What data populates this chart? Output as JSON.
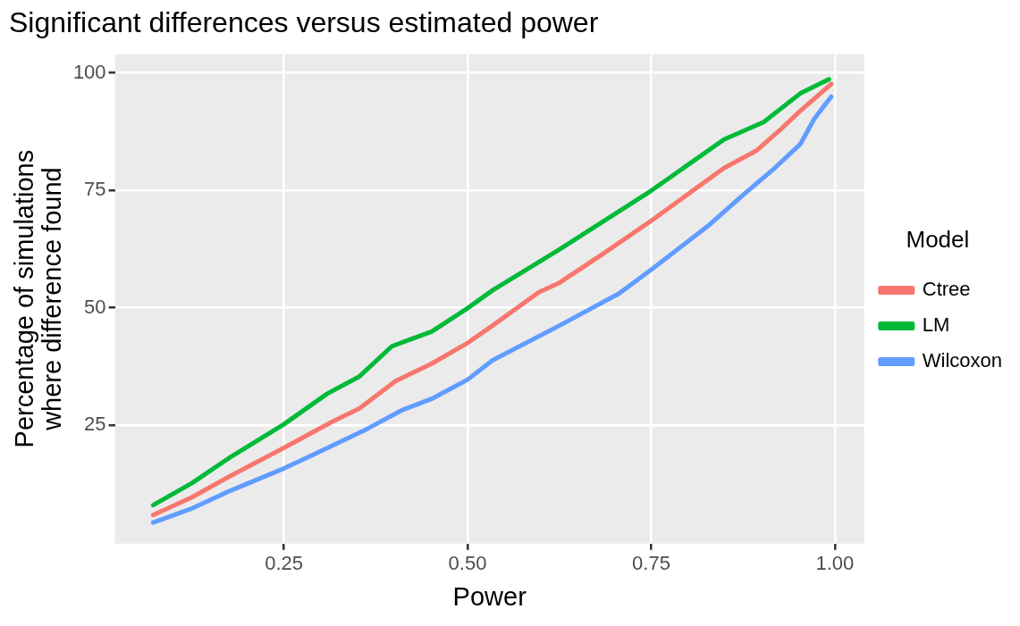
{
  "chart_data": {
    "type": "line",
    "title": "Significant differences versus estimated power",
    "xlabel": "Power",
    "ylabel": "Percentage of simulations\nwhere difference found",
    "legend_title": "Model",
    "legend": "right",
    "grid": true,
    "line_style": "solid",
    "marker": "none",
    "xlim": [
      0.02,
      1.04
    ],
    "xticks": [
      {
        "value": 0.25,
        "label": "0.25"
      },
      {
        "value": 0.5,
        "label": "0.50"
      },
      {
        "value": 0.75,
        "label": "0.75"
      },
      {
        "value": 1,
        "label": "1.00"
      }
    ],
    "ylim": [
      -0.2,
      104
    ],
    "yticks": [
      25,
      50,
      75,
      100
    ],
    "series": [
      {
        "name": "Ctree",
        "color": "#f8766d",
        "x": [
          0.072,
          0.125,
          0.176,
          0.25,
          0.314,
          0.353,
          0.402,
          0.451,
          0.5,
          0.534,
          0.597,
          0.625,
          0.681,
          0.75,
          0.849,
          0.893,
          0.928,
          0.953,
          0.995
        ],
        "values": [
          5.9,
          9.7,
          14.1,
          20.2,
          25.6,
          28.6,
          34.4,
          38.1,
          42.5,
          46.2,
          53.3,
          55.3,
          61.1,
          68.5,
          79.7,
          83.4,
          88.2,
          91.9,
          97.6
        ]
      },
      {
        "name": "LM",
        "color": "#00ba38",
        "x": [
          0.072,
          0.125,
          0.176,
          0.25,
          0.309,
          0.353,
          0.397,
          0.426,
          0.451,
          0.5,
          0.534,
          0.625,
          0.75,
          0.849,
          0.903,
          0.953,
          0.992
        ],
        "values": [
          8.0,
          12.7,
          18.1,
          25.2,
          31.7,
          35.4,
          41.8,
          43.5,
          44.9,
          49.9,
          53.7,
          62.4,
          74.9,
          85.8,
          89.5,
          95.6,
          98.6
        ]
      },
      {
        "name": "Wilcoxon",
        "color": "#619cff",
        "x": [
          0.072,
          0.125,
          0.176,
          0.25,
          0.314,
          0.363,
          0.412,
          0.451,
          0.5,
          0.534,
          0.625,
          0.706,
          0.75,
          0.829,
          0.875,
          0.918,
          0.953,
          0.972,
          0.995
        ],
        "values": [
          4.3,
          7.3,
          11.0,
          15.8,
          20.5,
          24.2,
          28.3,
          30.6,
          34.7,
          38.8,
          46.2,
          53.0,
          58.1,
          67.6,
          74.0,
          79.7,
          84.8,
          90.2,
          94.9
        ]
      }
    ]
  }
}
